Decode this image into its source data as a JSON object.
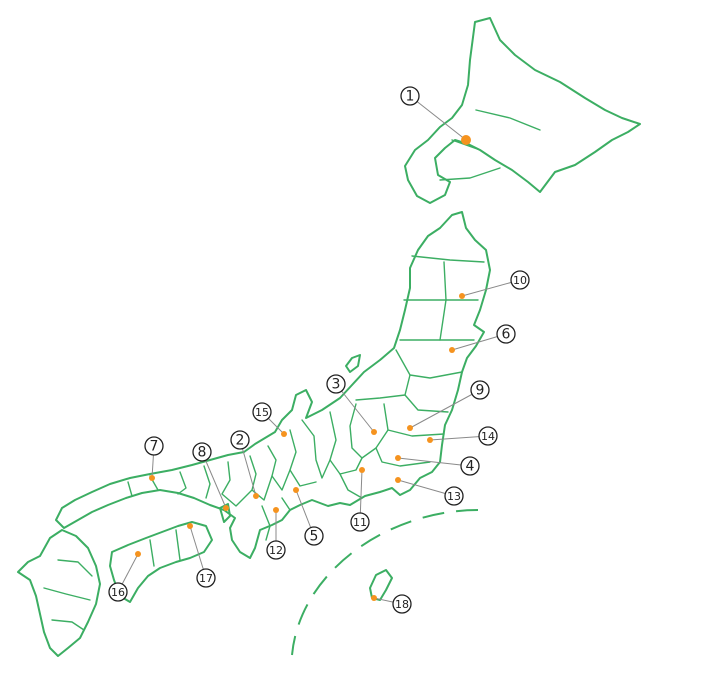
{
  "map": {
    "colors": {
      "outline": "#3cae63",
      "dot": "#f5931f",
      "leader": "#8a8a8a"
    },
    "markers": [
      {
        "label": "1",
        "importance": "major"
      },
      {
        "label": "2"
      },
      {
        "label": "3"
      },
      {
        "label": "4"
      },
      {
        "label": "5"
      },
      {
        "label": "6"
      },
      {
        "label": "7"
      },
      {
        "label": "8"
      },
      {
        "label": "9"
      },
      {
        "label": "10"
      },
      {
        "label": "11"
      },
      {
        "label": "12"
      },
      {
        "label": "13"
      },
      {
        "label": "14"
      },
      {
        "label": "15"
      },
      {
        "label": "16"
      },
      {
        "label": "17"
      },
      {
        "label": "18"
      }
    ]
  }
}
